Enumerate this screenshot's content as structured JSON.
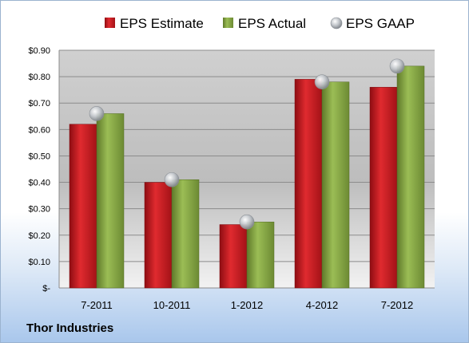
{
  "company": "Thor Industries",
  "chart_data": {
    "type": "bar",
    "categories": [
      "7-2011",
      "10-2011",
      "1-2012",
      "4-2012",
      "7-2012"
    ],
    "series": [
      {
        "name": "EPS Estimate",
        "kind": "bar",
        "color": "#c8181e",
        "values": [
          0.62,
          0.4,
          0.24,
          0.79,
          0.76
        ]
      },
      {
        "name": "EPS Actual",
        "kind": "bar",
        "color": "#86a344",
        "values": [
          0.66,
          0.41,
          0.25,
          0.78,
          0.84
        ]
      },
      {
        "name": "EPS GAAP",
        "kind": "marker",
        "color": "#b9bec4",
        "values": [
          0.66,
          0.41,
          0.25,
          0.78,
          0.84
        ]
      }
    ],
    "y_ticks": [
      {
        "value": 0,
        "label": "$-"
      },
      {
        "value": 0.1,
        "label": "$0.10"
      },
      {
        "value": 0.2,
        "label": "$0.20"
      },
      {
        "value": 0.3,
        "label": "$0.30"
      },
      {
        "value": 0.4,
        "label": "$0.40"
      },
      {
        "value": 0.5,
        "label": "$0.50"
      },
      {
        "value": 0.6,
        "label": "$0.60"
      },
      {
        "value": 0.7,
        "label": "$0.70"
      },
      {
        "value": 0.8,
        "label": "$0.80"
      },
      {
        "value": 0.9,
        "label": "$0.90"
      }
    ],
    "ylim": [
      0,
      0.9
    ],
    "grid": true,
    "legend_position": "top",
    "title": "",
    "xlabel": "",
    "ylabel": ""
  }
}
